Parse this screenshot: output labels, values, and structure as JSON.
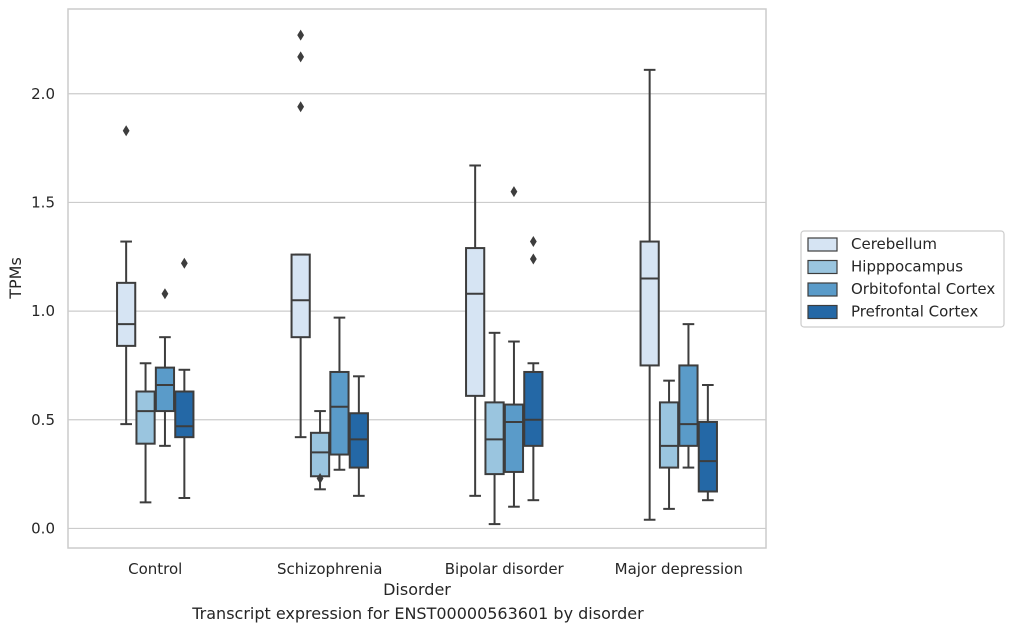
{
  "caption": "Transcript expression for ENST00000563601 by disorder",
  "chart_data": {
    "type": "box",
    "xlabel": "Disorder",
    "ylabel": "TPMs",
    "ylim": [
      -0.09,
      2.39
    ],
    "yticks": [
      "0.0",
      "0.5",
      "1.0",
      "1.5",
      "2.0"
    ],
    "grid": "horizontal",
    "legend": {
      "position": "right"
    },
    "categories": [
      "Control",
      "Schizophrenia",
      "Bipolar disorder",
      "Major depression"
    ],
    "series": [
      {
        "name": "Cerebellum",
        "color": "#d6e4f3",
        "boxes": [
          {
            "whislo": 0.48,
            "q1": 0.84,
            "med": 0.94,
            "q3": 1.13,
            "whishi": 1.32,
            "fliers": [
              1.83
            ]
          },
          {
            "whislo": 0.42,
            "q1": 0.88,
            "med": 1.05,
            "q3": 1.26,
            "whishi": 1.26,
            "fliers": [
              1.94,
              2.17,
              2.27
            ]
          },
          {
            "whislo": 0.15,
            "q1": 0.61,
            "med": 1.08,
            "q3": 1.29,
            "whishi": 1.67,
            "fliers": []
          },
          {
            "whislo": 0.04,
            "q1": 0.75,
            "med": 1.15,
            "q3": 1.32,
            "whishi": 2.11,
            "fliers": []
          }
        ]
      },
      {
        "name": "Hipppocampus",
        "color": "#9ac5df",
        "boxes": [
          {
            "whislo": 0.12,
            "q1": 0.39,
            "med": 0.54,
            "q3": 0.63,
            "whishi": 0.76,
            "fliers": []
          },
          {
            "whislo": 0.18,
            "q1": 0.24,
            "med": 0.35,
            "q3": 0.44,
            "whishi": 0.54,
            "fliers": [
              0.23
            ]
          },
          {
            "whislo": 0.02,
            "q1": 0.25,
            "med": 0.41,
            "q3": 0.58,
            "whishi": 0.9,
            "fliers": []
          },
          {
            "whislo": 0.09,
            "q1": 0.28,
            "med": 0.38,
            "q3": 0.58,
            "whishi": 0.68,
            "fliers": []
          }
        ]
      },
      {
        "name": "Orbitofontal Cortex",
        "color": "#5a9bc9",
        "boxes": [
          {
            "whislo": 0.38,
            "q1": 0.54,
            "med": 0.66,
            "q3": 0.74,
            "whishi": 0.88,
            "fliers": [
              1.08
            ]
          },
          {
            "whislo": 0.27,
            "q1": 0.34,
            "med": 0.56,
            "q3": 0.72,
            "whishi": 0.97,
            "fliers": []
          },
          {
            "whislo": 0.1,
            "q1": 0.26,
            "med": 0.49,
            "q3": 0.57,
            "whishi": 0.86,
            "fliers": [
              1.55
            ]
          },
          {
            "whislo": 0.28,
            "q1": 0.38,
            "med": 0.48,
            "q3": 0.75,
            "whishi": 0.94,
            "fliers": []
          }
        ]
      },
      {
        "name": "Prefrontal Cortex",
        "color": "#2468a6",
        "boxes": [
          {
            "whislo": 0.14,
            "q1": 0.42,
            "med": 0.47,
            "q3": 0.63,
            "whishi": 0.73,
            "fliers": [
              1.22
            ]
          },
          {
            "whislo": 0.15,
            "q1": 0.28,
            "med": 0.41,
            "q3": 0.53,
            "whishi": 0.7,
            "fliers": []
          },
          {
            "whislo": 0.13,
            "q1": 0.38,
            "med": 0.5,
            "q3": 0.72,
            "whishi": 0.76,
            "fliers": [
              1.24,
              1.32
            ]
          },
          {
            "whislo": 0.13,
            "q1": 0.17,
            "med": 0.31,
            "q3": 0.49,
            "whishi": 0.66,
            "fliers": []
          }
        ]
      }
    ]
  }
}
